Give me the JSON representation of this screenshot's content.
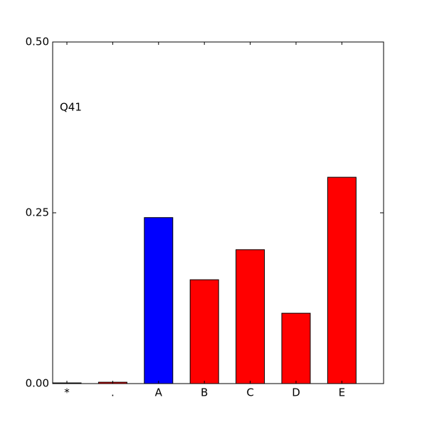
{
  "chart_data": {
    "type": "bar",
    "annotation": "Q41",
    "categories": [
      "*",
      ".",
      "A",
      "B",
      "C",
      "D",
      "E"
    ],
    "values": [
      0.001,
      0.002,
      0.243,
      0.152,
      0.196,
      0.103,
      0.302
    ],
    "colors": [
      "#ff0000",
      "#ff0000",
      "#0000ff",
      "#ff0000",
      "#ff0000",
      "#ff0000",
      "#ff0000"
    ],
    "ylim": [
      0,
      0.5
    ],
    "yticks": [
      {
        "value": 0,
        "label": "0.00"
      },
      {
        "value": 0.25,
        "label": "0.25"
      },
      {
        "value": 0.5,
        "label": "0.50"
      }
    ],
    "grid": false
  }
}
